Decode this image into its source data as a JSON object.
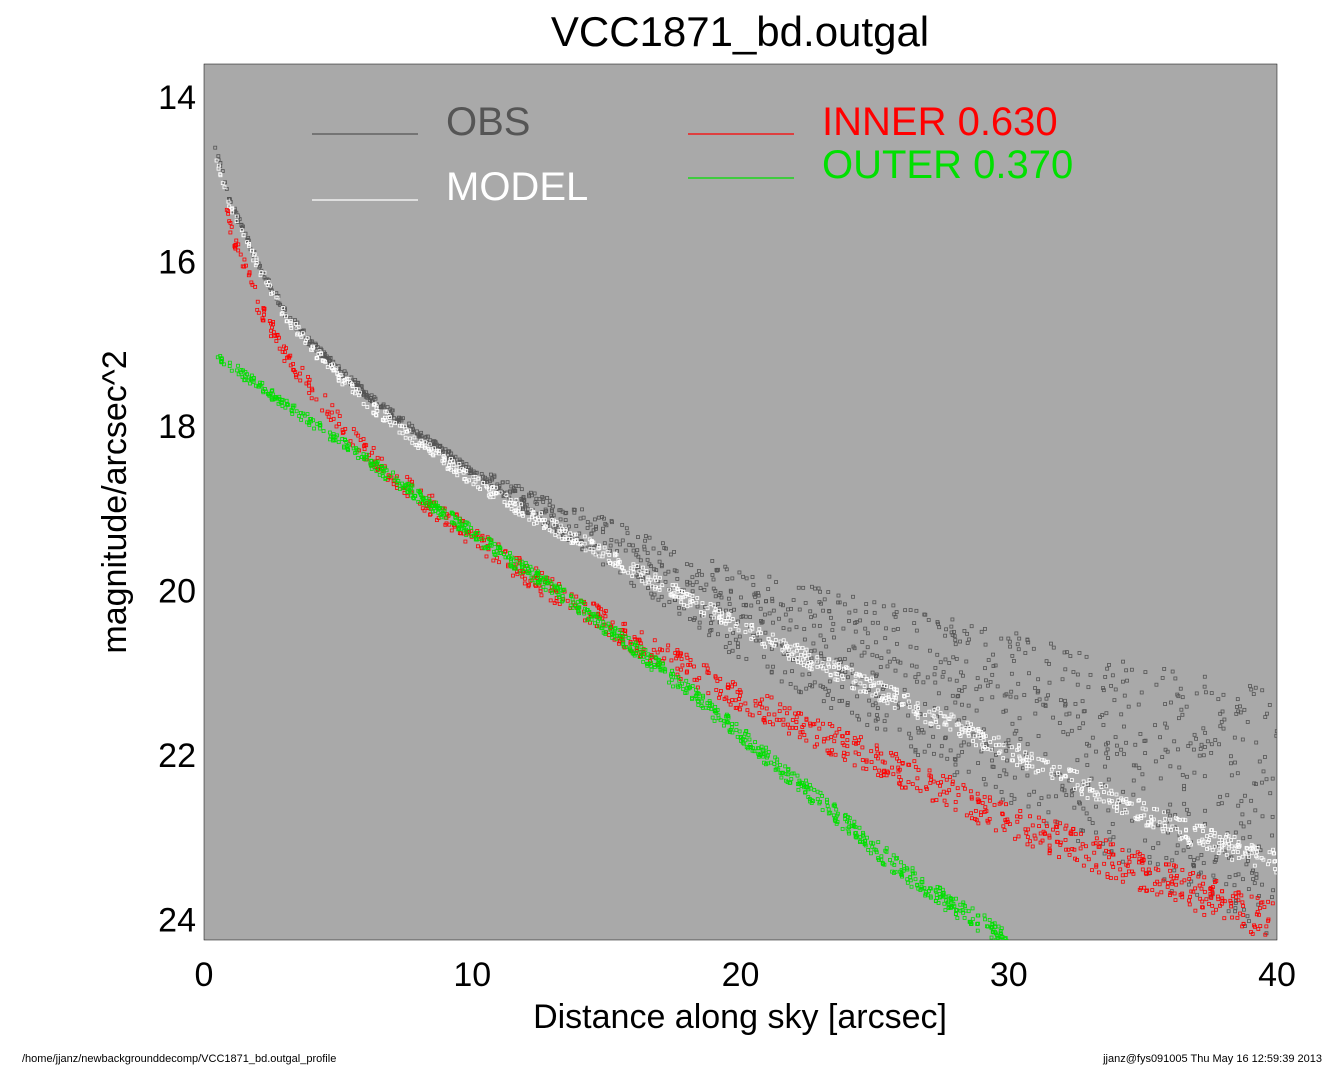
{
  "chart_data": {
    "type": "scatter",
    "title": "VCC1871_bd.outgal",
    "xlabel": "Distance along sky [arcsec]",
    "ylabel": "magnitude/arcsec^2",
    "xlim": [
      0,
      40
    ],
    "ylim": [
      24.25,
      13.6
    ],
    "y_inverted": true,
    "grid": false,
    "background_color": "#a9a9a9",
    "x_ticks": [
      "0",
      "10",
      "20",
      "30",
      "40"
    ],
    "y_ticks": [
      "14",
      "16",
      "18",
      "20",
      "22",
      "24"
    ],
    "legend": [
      {
        "label": "OBS",
        "color": "#555555"
      },
      {
        "label": "MODEL",
        "color": "#ffffff"
      },
      {
        "label": "INNER  0.630",
        "color": "#ff0000"
      },
      {
        "label": "OUTER  0.370",
        "color": "#00e000"
      }
    ],
    "series": [
      {
        "name": "OBS",
        "color": "#555555",
        "x": [
          0.4,
          1,
          2,
          3,
          4,
          6,
          8,
          10,
          12,
          14,
          16,
          18,
          20,
          22,
          24,
          26,
          28,
          30,
          32,
          34,
          36,
          38,
          40
        ],
        "y": [
          14.6,
          15.3,
          16.0,
          16.6,
          17.0,
          17.6,
          18.1,
          18.55,
          18.9,
          19.25,
          19.6,
          19.95,
          20.3,
          20.55,
          20.8,
          21.05,
          21.3,
          21.55,
          21.8,
          22.05,
          22.3,
          22.5,
          22.8
        ],
        "scatter_max": 1.5
      },
      {
        "name": "MODEL",
        "color": "#ffffff",
        "x": [
          0.4,
          1,
          2,
          3,
          4,
          6,
          8,
          10,
          12,
          14,
          16,
          18,
          20,
          22,
          24,
          26,
          28,
          30,
          32,
          34,
          36,
          38,
          40
        ],
        "y": [
          14.7,
          15.35,
          16.05,
          16.65,
          17.05,
          17.7,
          18.2,
          18.65,
          19.05,
          19.4,
          19.75,
          20.1,
          20.45,
          20.75,
          21.05,
          21.35,
          21.65,
          21.95,
          22.25,
          22.55,
          22.85,
          23.1,
          23.3
        ],
        "band_width": 0.3
      },
      {
        "name": "INNER  0.630",
        "color": "#ff0000",
        "x": [
          0.6,
          1,
          2,
          3,
          4,
          6,
          8,
          10,
          12,
          14,
          16,
          18,
          20,
          22,
          24,
          26,
          28,
          30,
          32,
          34,
          36,
          38,
          40
        ],
        "y": [
          15.1,
          15.6,
          16.5,
          17.1,
          17.55,
          18.3,
          18.85,
          19.35,
          19.8,
          20.2,
          20.6,
          20.95,
          21.3,
          21.6,
          21.9,
          22.2,
          22.5,
          22.8,
          23.05,
          23.3,
          23.55,
          23.8,
          24.05
        ],
        "band_width": 0.5
      },
      {
        "name": "OUTER  0.370",
        "color": "#00e000",
        "x": [
          0.5,
          2,
          4,
          6,
          8,
          10,
          12,
          14,
          16,
          18,
          20,
          22,
          24,
          26,
          28,
          30
        ],
        "y": [
          17.15,
          17.5,
          17.95,
          18.4,
          18.85,
          19.3,
          19.75,
          20.2,
          20.7,
          21.2,
          21.75,
          22.3,
          22.85,
          23.4,
          23.85,
          24.25
        ],
        "band_width": 0.3
      }
    ]
  },
  "footer": {
    "left": "/home/jjanz/newbackgrounddecomp/VCC1871_bd.outgal_profile",
    "right": "jjanz@fys091005  Thu May 16 12:59:39 2013"
  }
}
